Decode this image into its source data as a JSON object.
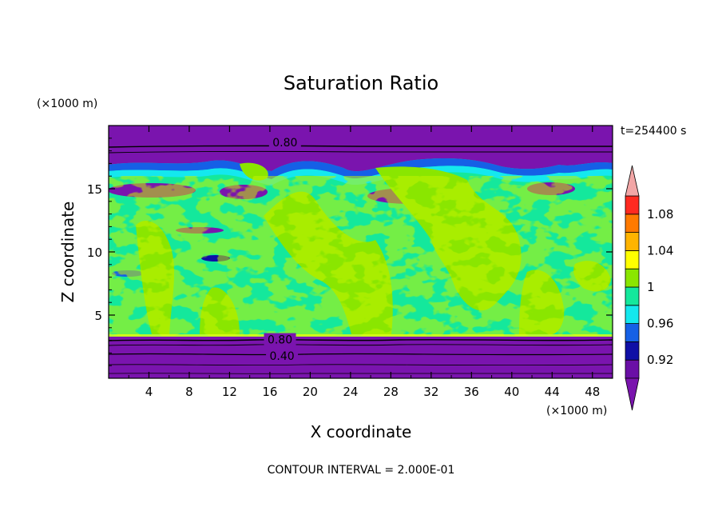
{
  "chart_data": {
    "type": "heatmap",
    "title": "Saturation Ratio",
    "xlabel": "X coordinate",
    "ylabel": "Z coordinate",
    "x_unit": "(×1000 m)",
    "y_unit": "(×1000 m)",
    "time_label": "t=254400 s",
    "footer": "CONTOUR INTERVAL = 2.000E-01",
    "xlim": [
      0,
      50
    ],
    "ylim": [
      0,
      20
    ],
    "x_ticks": [
      4,
      8,
      12,
      16,
      20,
      24,
      28,
      32,
      36,
      40,
      44,
      48
    ],
    "y_ticks": [
      5,
      10,
      15
    ],
    "colorbar": {
      "levels": [
        0.9,
        0.92,
        0.94,
        0.96,
        0.98,
        1.0,
        1.02,
        1.04,
        1.06,
        1.08,
        1.1
      ],
      "labels": [
        "0.92",
        "0.96",
        "1",
        "1.04",
        "1.08"
      ],
      "label_values": [
        0.92,
        0.96,
        1.0,
        1.04,
        1.08
      ],
      "colors": [
        "#6a0fa6",
        "#0f0fa6",
        "#1560e6",
        "#14e8ee",
        "#14e89c",
        "#8ae600",
        "#ffff00",
        "#ffb400",
        "#ff7a00",
        "#ff2a20"
      ],
      "under_color": "#7a14ae",
      "over_color": "#f2a6a6"
    },
    "contour_labels": [
      {
        "text": "0.80",
        "x": 17.5,
        "z": 18.6
      },
      {
        "text": "0.80",
        "x": 17.0,
        "z": 3.0
      },
      {
        "text": "0.40",
        "x": 17.2,
        "z": 1.7
      }
    ]
  }
}
